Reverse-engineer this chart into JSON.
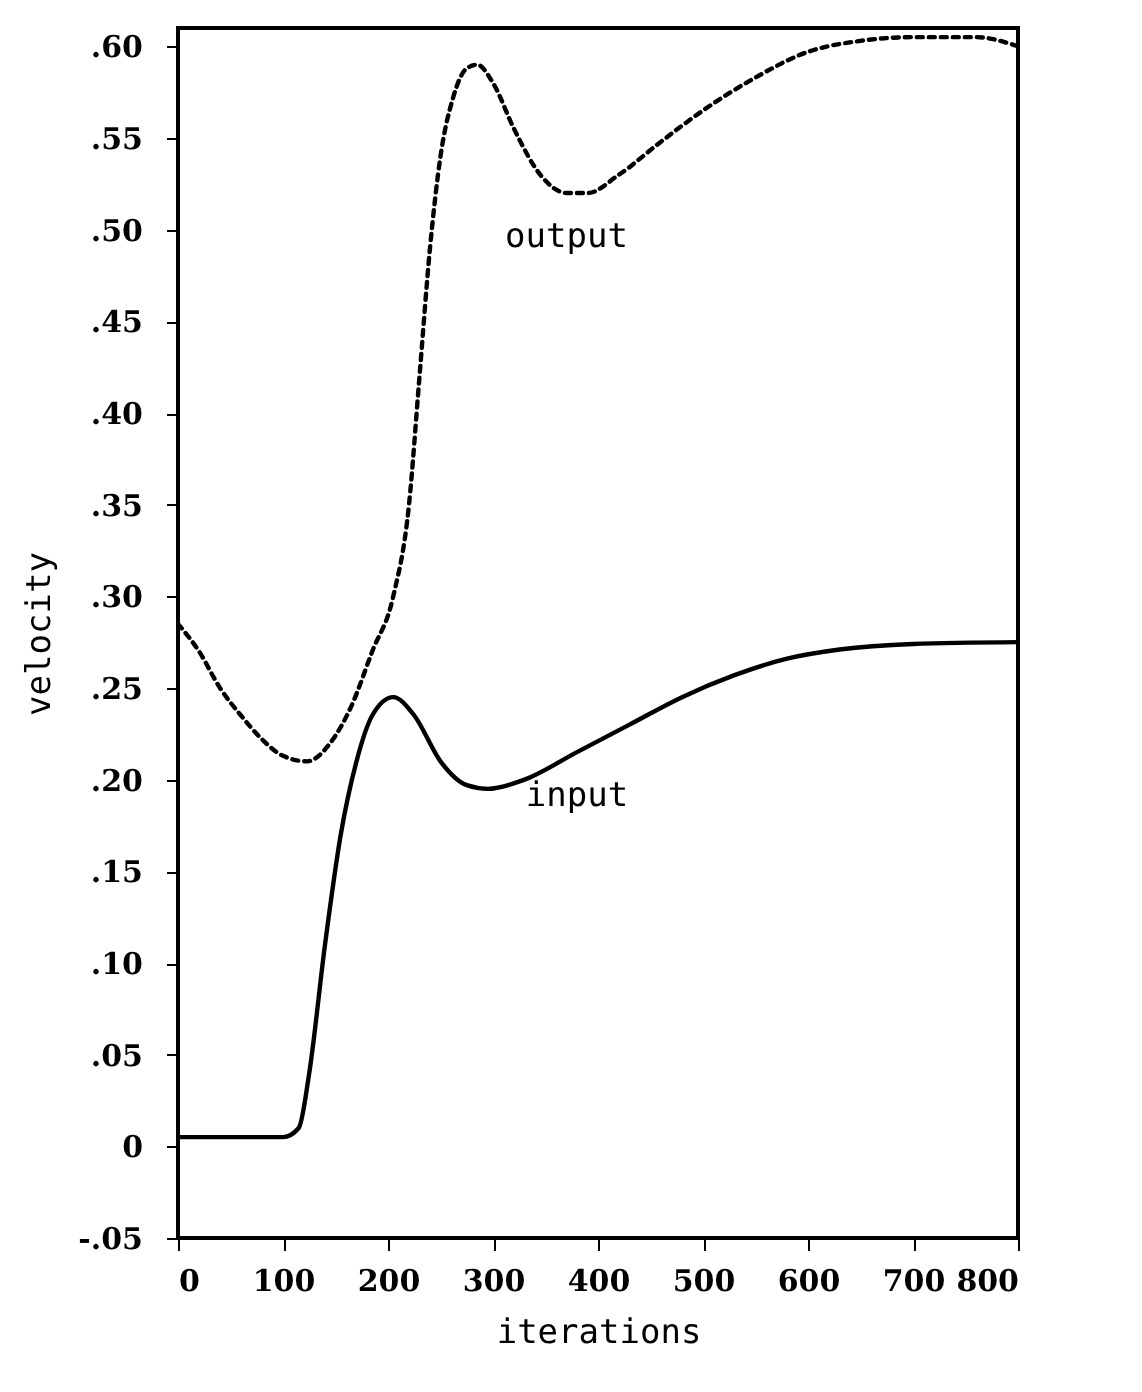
{
  "chart_data": {
    "type": "line",
    "xlabel": "iterations",
    "ylabel": "velocity",
    "xlim": [
      0,
      800
    ],
    "ylim": [
      -0.05,
      0.61
    ],
    "xticks": [
      0,
      100,
      200,
      300,
      400,
      500,
      600,
      700,
      800
    ],
    "yticks": [
      {
        "value": -0.05,
        "label": "-.05"
      },
      0,
      {
        "value": 0.05,
        "label": ".05"
      },
      {
        "value": 0.1,
        "label": ".10"
      },
      {
        "value": 0.15,
        "label": ".15"
      },
      {
        "value": 0.2,
        "label": ".20"
      },
      {
        "value": 0.25,
        "label": ".25"
      },
      {
        "value": 0.3,
        "label": ".30"
      },
      {
        "value": 0.35,
        "label": ".35"
      },
      {
        "value": 0.4,
        "label": ".40"
      },
      {
        "value": 0.45,
        "label": ".45"
      },
      {
        "value": 0.5,
        "label": ".50"
      },
      {
        "value": 0.55,
        "label": ".55"
      },
      {
        "value": 0.6,
        "label": ".60"
      }
    ],
    "grid": false,
    "marker": "none",
    "series": [
      {
        "name": "output",
        "color": "#000000",
        "line_style": "dotted",
        "x": [
          0,
          20,
          40,
          60,
          80,
          100,
          123,
          145,
          165,
          185,
          205,
          220,
          230,
          240,
          250,
          262,
          275,
          285,
          300,
          320,
          345,
          370,
          390,
          420,
          460,
          500,
          550,
          600,
          650,
          700,
          760,
          800
        ],
        "values": [
          0.285,
          0.27,
          0.25,
          0.235,
          0.222,
          0.213,
          0.21,
          0.22,
          0.24,
          0.27,
          0.3,
          0.35,
          0.42,
          0.49,
          0.54,
          0.572,
          0.588,
          0.59,
          0.58,
          0.555,
          0.53,
          0.52,
          0.52,
          0.53,
          0.548,
          0.565,
          0.583,
          0.597,
          0.603,
          0.605,
          0.605,
          0.6
        ]
      },
      {
        "name": "input",
        "color": "#000000",
        "line_style": "solid",
        "x": [
          0,
          100,
          115,
          125,
          140,
          155,
          170,
          185,
          205,
          225,
          250,
          275,
          295,
          330,
          380,
          430,
          480,
          530,
          580,
          630,
          700,
          800
        ],
        "values": [
          0.005,
          0.005,
          0.01,
          0.04,
          0.11,
          0.17,
          0.21,
          0.235,
          0.245,
          0.235,
          0.21,
          0.197,
          0.195,
          0.2,
          0.215,
          0.23,
          0.245,
          0.257,
          0.266,
          0.271,
          0.274,
          0.275
        ]
      }
    ]
  }
}
